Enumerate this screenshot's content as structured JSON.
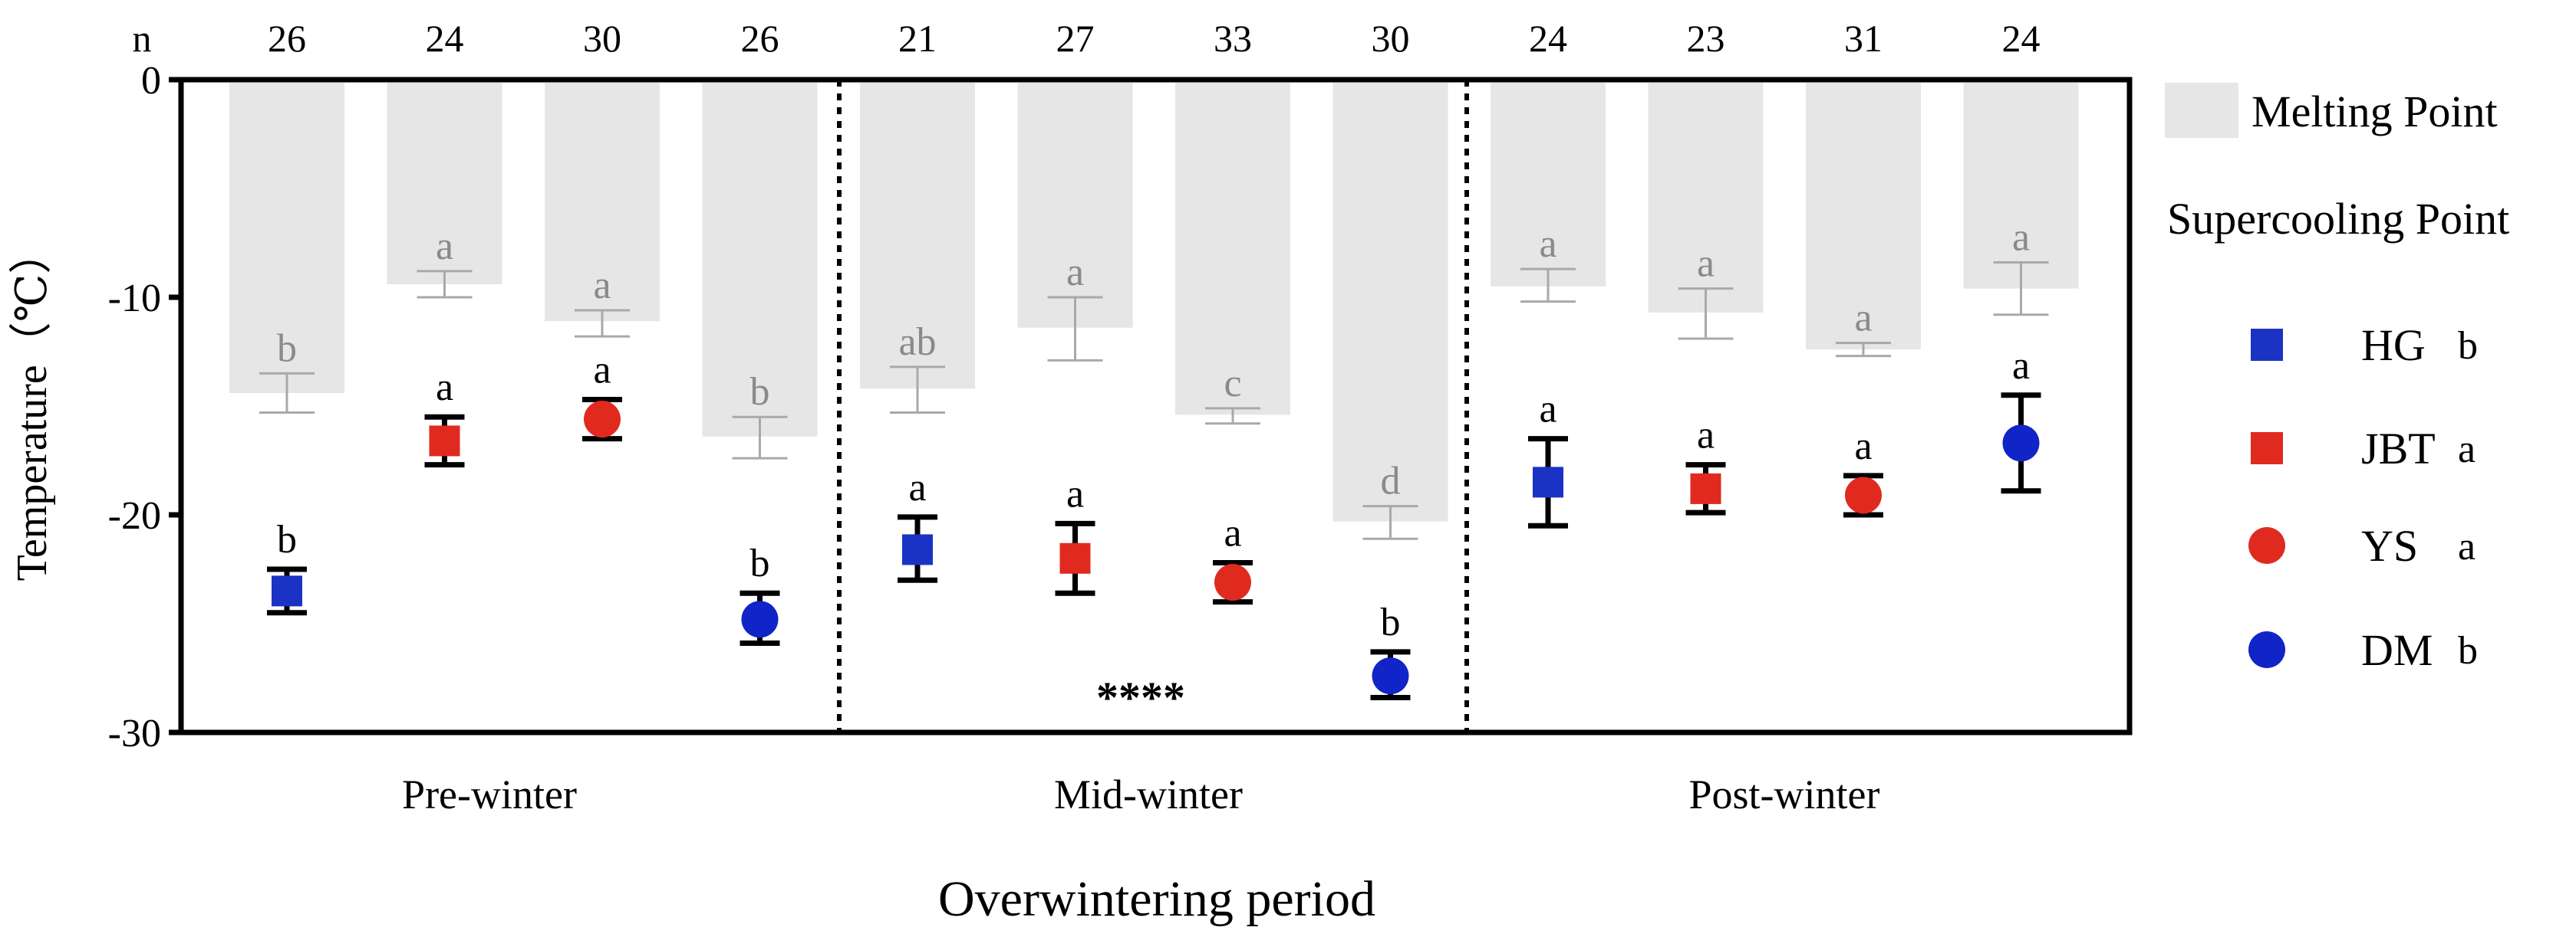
{
  "chart_data": {
    "type": "bar",
    "title": "",
    "xlabel": "Overwintering period",
    "ylabel": "Temperature（℃）",
    "ylim": [
      -30,
      0
    ],
    "yticks": [
      "0",
      "-10",
      "-20",
      "-30"
    ],
    "n_label": "n",
    "n_values": [
      "26",
      "24",
      "30",
      "26",
      "21",
      "27",
      "33",
      "30",
      "24",
      "23",
      "31",
      "24"
    ],
    "periods": [
      "Pre-winter",
      "Mid-winter",
      "Post-winter"
    ],
    "groups": [
      "HG",
      "JBT",
      "YS",
      "DM"
    ],
    "series": [
      {
        "name": "Melting Point",
        "kind": "bar",
        "values": [
          -14.4,
          -9.4,
          -11.1,
          -16.4,
          -14.2,
          -11.4,
          -15.4,
          -20.3,
          -9.5,
          -10.7,
          -12.4,
          -9.6
        ],
        "err_low": [
          -15.3,
          -10.0,
          -11.8,
          -17.4,
          -15.3,
          -12.9,
          -15.8,
          -21.1,
          -10.2,
          -11.9,
          -12.7,
          -10.8
        ],
        "err_high": [
          -13.5,
          -8.8,
          -10.6,
          -15.5,
          -13.2,
          -10.0,
          -15.1,
          -19.6,
          -8.7,
          -9.6,
          -12.1,
          -8.4
        ],
        "letters": [
          "b",
          "a",
          "a",
          "b",
          "ab",
          "a",
          "c",
          "d",
          "a",
          "a",
          "a",
          "a"
        ]
      },
      {
        "name": "Supercooling Point",
        "kind": "point",
        "values": [
          -23.5,
          -16.6,
          -15.6,
          -24.8,
          -21.6,
          -22.0,
          -23.1,
          -27.4,
          -18.5,
          -18.8,
          -19.1,
          -16.7
        ],
        "err_low": [
          -24.5,
          -17.7,
          -16.5,
          -25.9,
          -23.0,
          -23.6,
          -24.0,
          -28.4,
          -20.5,
          -19.9,
          -20.0,
          -18.9
        ],
        "err_high": [
          -22.5,
          -15.5,
          -14.7,
          -23.6,
          -20.1,
          -20.4,
          -22.2,
          -26.3,
          -16.5,
          -17.7,
          -18.2,
          -14.5
        ],
        "letters": [
          "b",
          "a",
          "a",
          "b",
          "a",
          "a",
          "a",
          "b",
          "a",
          "a",
          "a",
          "a"
        ],
        "point_groups": [
          "HG",
          "JBT",
          "YS",
          "DM",
          "HG",
          "JBT",
          "YS",
          "DM",
          "HG",
          "JBT",
          "YS",
          "DM"
        ]
      }
    ],
    "annotation": "****",
    "legend": {
      "position": "right",
      "bar_label": "Melting Point",
      "point_title": "Supercooling Point",
      "items": [
        {
          "name": "HG",
          "letter": "b",
          "color": "#1a33c4",
          "shape": "square"
        },
        {
          "name": "JBT",
          "letter": "a",
          "color": "#e02a20",
          "shape": "square"
        },
        {
          "name": "YS",
          "letter": "a",
          "color": "#e02a20",
          "shape": "circle"
        },
        {
          "name": "DM",
          "letter": "b",
          "color": "#1024c8",
          "shape": "circle"
        }
      ]
    },
    "colors": {
      "bar": "#e6e6e6",
      "bar_text": "#8a8a8a",
      "axis": "#000000"
    }
  }
}
